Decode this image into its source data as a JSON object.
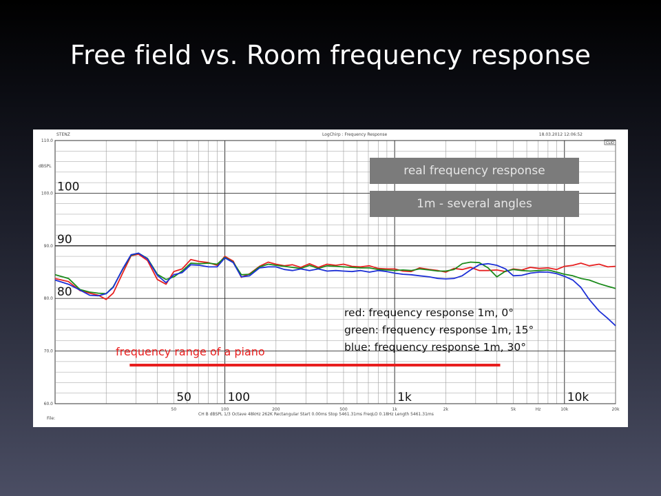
{
  "slide": {
    "title": "Free field vs. Room frequency response"
  },
  "plot_header": {
    "left": "STENZ",
    "center": "LogChirp : Frequency Response",
    "right": "18.03.2012 12:06:52",
    "logo": "CLIO"
  },
  "plot_footer": {
    "info": "CH B  dBSPL  1/3 Octave  48kHz  262K  Rectangular  Start 0.00ms  Stop 5461.31ms  FreqLO 0.18Hz  Length 5461.31ms",
    "file_label": "File:"
  },
  "callouts": {
    "real_response": "real frequency response",
    "angles": "1m - several angles"
  },
  "legend": {
    "red": "red: frequency response 1m, 0°",
    "green": "green: frequency response 1m, 15°",
    "blue": "blue: frequency response 1m, 30°"
  },
  "annotations": {
    "piano_label": "frequency range of a piano",
    "piano_range": [
      27.5,
      4186
    ],
    "y_marks": [
      {
        "value": 100,
        "label": "100"
      },
      {
        "value": 90,
        "label": "90"
      },
      {
        "value": 80,
        "label": "80"
      }
    ],
    "x_marks": [
      {
        "value": 50,
        "label": "50"
      },
      {
        "value": 100,
        "label": "100"
      },
      {
        "value": 1000,
        "label": "1k"
      },
      {
        "value": 10000,
        "label": "10k"
      }
    ]
  },
  "colors": {
    "red": "#e62020",
    "green": "#1a8a1a",
    "blue": "#1c2fd6",
    "grid": "#9a9a9a",
    "grid_major": "#333333",
    "callout_bg": "#7b7b7b",
    "piano_bar": "#e81e1e"
  },
  "chart_data": {
    "type": "line",
    "xscale": "log",
    "xlim": [
      10,
      20000
    ],
    "ylim": [
      60,
      110
    ],
    "ylabel": "dBSPL",
    "xtick_labels": [
      "50",
      "100",
      "200",
      "500",
      "1k",
      "2k",
      "5k",
      "Hz",
      "10k",
      "20k"
    ],
    "xtick_values": [
      50,
      100,
      200,
      500,
      1000,
      2000,
      5000,
      7000,
      10000,
      20000
    ],
    "ytick_labels": [
      "110.0",
      "100.0",
      "90.0",
      "80.0",
      "70.0",
      "60.0"
    ],
    "ytick_values": [
      110,
      100,
      90,
      80,
      70,
      60
    ],
    "grid": true,
    "reference_line": 90,
    "series": [
      {
        "name": "red",
        "x": [
          10,
          12,
          14,
          16,
          18,
          20,
          22,
          25,
          28,
          31,
          35,
          40,
          45,
          50,
          56,
          63,
          71,
          80,
          90,
          100,
          112,
          125,
          140,
          160,
          180,
          200,
          224,
          250,
          280,
          315,
          355,
          400,
          450,
          500,
          560,
          630,
          710,
          800,
          900,
          1000,
          1120,
          1250,
          1400,
          1600,
          1800,
          2000,
          2240,
          2500,
          2800,
          3150,
          3550,
          4000,
          4500,
          5000,
          5600,
          6300,
          7100,
          8000,
          9000,
          10000,
          11200,
          12500,
          14000,
          16000,
          18000,
          20000
        ],
        "y": [
          83.8,
          83.2,
          81.5,
          81.0,
          80.6,
          79.8,
          81.0,
          84.8,
          88.1,
          88.4,
          87.2,
          83.6,
          82.7,
          85.1,
          85.6,
          87.4,
          87.0,
          86.8,
          86.3,
          88.0,
          87.1,
          84.0,
          84.7,
          86.1,
          86.9,
          86.5,
          86.2,
          86.4,
          85.9,
          86.6,
          85.9,
          86.5,
          86.3,
          86.5,
          86.1,
          86.0,
          86.2,
          85.7,
          85.6,
          85.6,
          85.2,
          85.1,
          85.8,
          85.5,
          85.3,
          85.0,
          85.7,
          85.5,
          85.9,
          85.3,
          85.3,
          85.4,
          85.1,
          85.6,
          85.4,
          85.9,
          85.7,
          85.8,
          85.5,
          86.1,
          86.3,
          86.7,
          86.2,
          86.5,
          86.0,
          86.1
        ]
      },
      {
        "name": "green",
        "x": [
          10,
          12,
          14,
          16,
          18,
          20,
          22,
          25,
          28,
          31,
          35,
          40,
          45,
          50,
          56,
          63,
          71,
          80,
          90,
          100,
          112,
          125,
          140,
          160,
          180,
          200,
          224,
          250,
          280,
          315,
          355,
          400,
          450,
          500,
          560,
          630,
          710,
          800,
          900,
          1000,
          1120,
          1250,
          1400,
          1600,
          1800,
          2000,
          2240,
          2500,
          2800,
          3150,
          3550,
          4000,
          4500,
          5000,
          5600,
          6300,
          7100,
          8000,
          9000,
          10000,
          11200,
          12500,
          14000,
          16000,
          18000,
          20000
        ],
        "y": [
          84.5,
          83.8,
          81.7,
          81.2,
          81.0,
          80.9,
          82.2,
          85.5,
          88.2,
          88.6,
          87.6,
          84.6,
          83.6,
          84.1,
          85.2,
          86.7,
          86.6,
          86.7,
          86.5,
          87.8,
          86.9,
          84.5,
          84.6,
          86.0,
          86.5,
          86.3,
          86.1,
          85.9,
          85.7,
          86.3,
          85.7,
          86.2,
          86.1,
          86.0,
          85.9,
          85.8,
          85.8,
          85.5,
          85.4,
          85.3,
          85.4,
          85.3,
          85.6,
          85.4,
          85.2,
          85.2,
          85.5,
          86.6,
          86.9,
          86.8,
          85.8,
          84.1,
          85.2,
          85.5,
          85.3,
          85.2,
          85.3,
          85.4,
          85.0,
          84.6,
          84.3,
          83.8,
          83.5,
          82.8,
          82.3,
          81.9
        ]
      },
      {
        "name": "blue",
        "x": [
          10,
          12,
          14,
          16,
          18,
          20,
          22,
          25,
          28,
          31,
          35,
          40,
          45,
          50,
          56,
          63,
          71,
          80,
          90,
          100,
          112,
          125,
          140,
          160,
          180,
          200,
          224,
          250,
          280,
          315,
          355,
          400,
          450,
          500,
          560,
          630,
          710,
          800,
          900,
          1000,
          1120,
          1250,
          1400,
          1600,
          1800,
          2000,
          2240,
          2500,
          2800,
          3150,
          3550,
          4000,
          4500,
          5000,
          5600,
          6300,
          7100,
          8000,
          9000,
          10000,
          11200,
          12500,
          14000,
          16000,
          18000,
          20000
        ],
        "y": [
          83.5,
          82.7,
          81.6,
          80.6,
          80.5,
          80.9,
          82.1,
          85.6,
          88.3,
          88.6,
          87.5,
          84.4,
          83.0,
          84.5,
          84.9,
          86.4,
          86.3,
          86.0,
          86.0,
          87.7,
          86.8,
          84.1,
          84.3,
          85.8,
          86.0,
          86.0,
          85.5,
          85.3,
          85.6,
          85.3,
          85.6,
          85.2,
          85.3,
          85.2,
          85.1,
          85.3,
          85.0,
          85.3,
          85.1,
          84.8,
          84.6,
          84.5,
          84.3,
          84.1,
          83.8,
          83.7,
          83.8,
          84.3,
          85.4,
          86.4,
          86.6,
          86.3,
          85.6,
          84.3,
          84.4,
          84.8,
          85.0,
          85.0,
          84.7,
          84.2,
          83.5,
          82.1,
          79.8,
          77.6,
          76.2,
          74.8
        ]
      }
    ]
  }
}
